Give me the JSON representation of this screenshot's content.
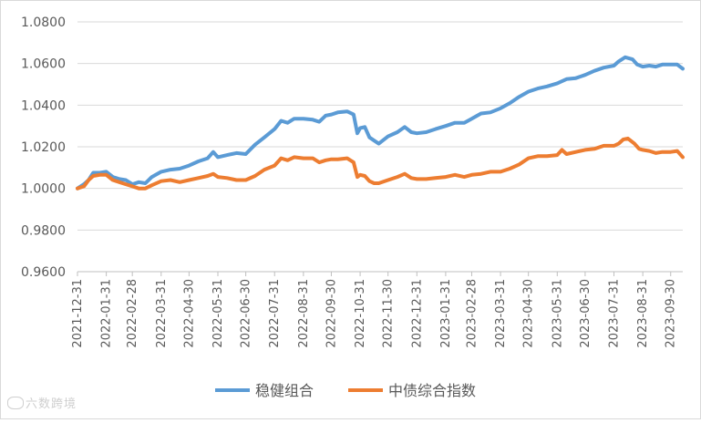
{
  "chart_data": {
    "type": "line",
    "title": "",
    "xlabel": "",
    "ylabel": "",
    "ylim": [
      0.96,
      1.08
    ],
    "y_ticks": [
      "0.9600",
      "0.9800",
      "1.0000",
      "1.0200",
      "1.0400",
      "1.0600",
      "1.0800"
    ],
    "x_ticks": [
      "2021-12-31",
      "2022-01-31",
      "2022-02-28",
      "2022-03-31",
      "2022-04-30",
      "2022-05-31",
      "2022-06-30",
      "2022-07-31",
      "2022-08-31",
      "2022-09-30",
      "2022-10-31",
      "2022-11-30",
      "2022-12-31",
      "2023-01-31",
      "2023-02-28",
      "2023-03-31",
      "2023-04-30",
      "2023-05-31",
      "2023-06-30",
      "2023-07-31",
      "2023-08-31",
      "2023-09-30"
    ],
    "grid": "horizontal",
    "legend": "bottom",
    "series": [
      {
        "name": "稳健组合",
        "color": "#5b9bd5",
        "points": [
          [
            "2021-12-31",
            1.0
          ],
          [
            "2022-01-07",
            1.002
          ],
          [
            "2022-01-12",
            1.004
          ],
          [
            "2022-01-17",
            1.0075
          ],
          [
            "2022-01-24",
            1.0075
          ],
          [
            "2022-01-31",
            1.008
          ],
          [
            "2022-02-07",
            1.0055
          ],
          [
            "2022-02-14",
            1.0045
          ],
          [
            "2022-02-21",
            1.004
          ],
          [
            "2022-02-28",
            1.002
          ],
          [
            "2022-03-07",
            1.003
          ],
          [
            "2022-03-14",
            1.0025
          ],
          [
            "2022-03-21",
            1.0055
          ],
          [
            "2022-03-31",
            1.008
          ],
          [
            "2022-04-10",
            1.009
          ],
          [
            "2022-04-20",
            1.0095
          ],
          [
            "2022-04-30",
            1.011
          ],
          [
            "2022-05-10",
            1.013
          ],
          [
            "2022-05-20",
            1.0145
          ],
          [
            "2022-05-26",
            1.0175
          ],
          [
            "2022-05-31",
            1.015
          ],
          [
            "2022-06-10",
            1.016
          ],
          [
            "2022-06-20",
            1.017
          ],
          [
            "2022-06-30",
            1.0165
          ],
          [
            "2022-07-10",
            1.021
          ],
          [
            "2022-07-20",
            1.0245
          ],
          [
            "2022-07-31",
            1.0285
          ],
          [
            "2022-08-07",
            1.0325
          ],
          [
            "2022-08-14",
            1.0315
          ],
          [
            "2022-08-21",
            1.0335
          ],
          [
            "2022-08-31",
            1.0335
          ],
          [
            "2022-09-10",
            1.033
          ],
          [
            "2022-09-17",
            1.032
          ],
          [
            "2022-09-24",
            1.035
          ],
          [
            "2022-09-30",
            1.0355
          ],
          [
            "2022-10-07",
            1.0365
          ],
          [
            "2022-10-17",
            1.037
          ],
          [
            "2022-10-24",
            1.0355
          ],
          [
            "2022-10-28",
            1.0265
          ],
          [
            "2022-10-31",
            1.029
          ],
          [
            "2022-11-05",
            1.0295
          ],
          [
            "2022-11-10",
            1.0245
          ],
          [
            "2022-11-15",
            1.023
          ],
          [
            "2022-11-20",
            1.0215
          ],
          [
            "2022-11-30",
            1.025
          ],
          [
            "2022-12-10",
            1.027
          ],
          [
            "2022-12-18",
            1.0295
          ],
          [
            "2022-12-25",
            1.027
          ],
          [
            "2022-12-31",
            1.0265
          ],
          [
            "2023-01-10",
            1.027
          ],
          [
            "2023-01-20",
            1.0285
          ],
          [
            "2023-01-31",
            1.03
          ],
          [
            "2023-02-10",
            1.0315
          ],
          [
            "2023-02-20",
            1.0315
          ],
          [
            "2023-02-28",
            1.0335
          ],
          [
            "2023-03-10",
            1.036
          ],
          [
            "2023-03-20",
            1.0365
          ],
          [
            "2023-03-31",
            1.0385
          ],
          [
            "2023-04-10",
            1.041
          ],
          [
            "2023-04-20",
            1.044
          ],
          [
            "2023-04-30",
            1.0465
          ],
          [
            "2023-05-10",
            1.048
          ],
          [
            "2023-05-20",
            1.049
          ],
          [
            "2023-05-31",
            1.0505
          ],
          [
            "2023-06-10",
            1.0525
          ],
          [
            "2023-06-20",
            1.053
          ],
          [
            "2023-06-30",
            1.0545
          ],
          [
            "2023-07-10",
            1.0565
          ],
          [
            "2023-07-20",
            1.058
          ],
          [
            "2023-07-31",
            1.059
          ],
          [
            "2023-08-05",
            1.061
          ],
          [
            "2023-08-12",
            1.063
          ],
          [
            "2023-08-20",
            1.062
          ],
          [
            "2023-08-25",
            1.0595
          ],
          [
            "2023-08-31",
            1.0585
          ],
          [
            "2023-09-07",
            1.059
          ],
          [
            "2023-09-14",
            1.0585
          ],
          [
            "2023-09-21",
            1.0595
          ],
          [
            "2023-09-30",
            1.0595
          ],
          [
            "2023-10-07",
            1.0595
          ],
          [
            "2023-10-13",
            1.0575
          ]
        ]
      },
      {
        "name": "中债综合指数",
        "color": "#ed7d31",
        "points": [
          [
            "2021-12-31",
            1.0
          ],
          [
            "2022-01-07",
            1.001
          ],
          [
            "2022-01-12",
            1.004
          ],
          [
            "2022-01-17",
            1.006
          ],
          [
            "2022-01-24",
            1.0065
          ],
          [
            "2022-01-31",
            1.0065
          ],
          [
            "2022-02-07",
            1.004
          ],
          [
            "2022-02-14",
            1.003
          ],
          [
            "2022-02-21",
            1.002
          ],
          [
            "2022-02-28",
            1.001
          ],
          [
            "2022-03-07",
            1.0
          ],
          [
            "2022-03-14",
            1.0
          ],
          [
            "2022-03-21",
            1.0015
          ],
          [
            "2022-03-31",
            1.0035
          ],
          [
            "2022-04-10",
            1.004
          ],
          [
            "2022-04-20",
            1.003
          ],
          [
            "2022-04-30",
            1.004
          ],
          [
            "2022-05-10",
            1.005
          ],
          [
            "2022-05-20",
            1.006
          ],
          [
            "2022-05-26",
            1.007
          ],
          [
            "2022-05-31",
            1.0055
          ],
          [
            "2022-06-10",
            1.005
          ],
          [
            "2022-06-20",
            1.004
          ],
          [
            "2022-06-30",
            1.004
          ],
          [
            "2022-07-10",
            1.006
          ],
          [
            "2022-07-20",
            1.009
          ],
          [
            "2022-07-31",
            1.011
          ],
          [
            "2022-08-07",
            1.0145
          ],
          [
            "2022-08-14",
            1.0135
          ],
          [
            "2022-08-21",
            1.015
          ],
          [
            "2022-08-31",
            1.0145
          ],
          [
            "2022-09-10",
            1.0145
          ],
          [
            "2022-09-17",
            1.0125
          ],
          [
            "2022-09-24",
            1.0135
          ],
          [
            "2022-09-30",
            1.014
          ],
          [
            "2022-10-07",
            1.014
          ],
          [
            "2022-10-17",
            1.0145
          ],
          [
            "2022-10-24",
            1.0125
          ],
          [
            "2022-10-28",
            1.0055
          ],
          [
            "2022-10-31",
            1.0065
          ],
          [
            "2022-11-05",
            1.006
          ],
          [
            "2022-11-10",
            1.0035
          ],
          [
            "2022-11-15",
            1.0025
          ],
          [
            "2022-11-20",
            1.0025
          ],
          [
            "2022-11-30",
            1.004
          ],
          [
            "2022-12-10",
            1.0055
          ],
          [
            "2022-12-18",
            1.007
          ],
          [
            "2022-12-25",
            1.005
          ],
          [
            "2022-12-31",
            1.0045
          ],
          [
            "2023-01-10",
            1.0045
          ],
          [
            "2023-01-20",
            1.005
          ],
          [
            "2023-01-31",
            1.0055
          ],
          [
            "2023-02-10",
            1.0065
          ],
          [
            "2023-02-20",
            1.0055
          ],
          [
            "2023-02-28",
            1.0065
          ],
          [
            "2023-03-10",
            1.007
          ],
          [
            "2023-03-20",
            1.008
          ],
          [
            "2023-03-31",
            1.008
          ],
          [
            "2023-04-10",
            1.0095
          ],
          [
            "2023-04-20",
            1.0115
          ],
          [
            "2023-04-30",
            1.0145
          ],
          [
            "2023-05-10",
            1.0155
          ],
          [
            "2023-05-20",
            1.0155
          ],
          [
            "2023-05-31",
            1.016
          ],
          [
            "2023-06-05",
            1.0185
          ],
          [
            "2023-06-10",
            1.0165
          ],
          [
            "2023-06-20",
            1.0175
          ],
          [
            "2023-06-30",
            1.0185
          ],
          [
            "2023-07-10",
            1.019
          ],
          [
            "2023-07-20",
            1.0205
          ],
          [
            "2023-07-31",
            1.0205
          ],
          [
            "2023-08-05",
            1.0215
          ],
          [
            "2023-08-10",
            1.0235
          ],
          [
            "2023-08-15",
            1.024
          ],
          [
            "2023-08-22",
            1.0215
          ],
          [
            "2023-08-27",
            1.019
          ],
          [
            "2023-08-31",
            1.0185
          ],
          [
            "2023-09-07",
            1.018
          ],
          [
            "2023-09-14",
            1.017
          ],
          [
            "2023-09-21",
            1.0175
          ],
          [
            "2023-09-30",
            1.0175
          ],
          [
            "2023-10-07",
            1.018
          ],
          [
            "2023-10-13",
            1.015
          ]
        ]
      }
    ]
  },
  "watermark": {
    "text": "六数跨境"
  }
}
